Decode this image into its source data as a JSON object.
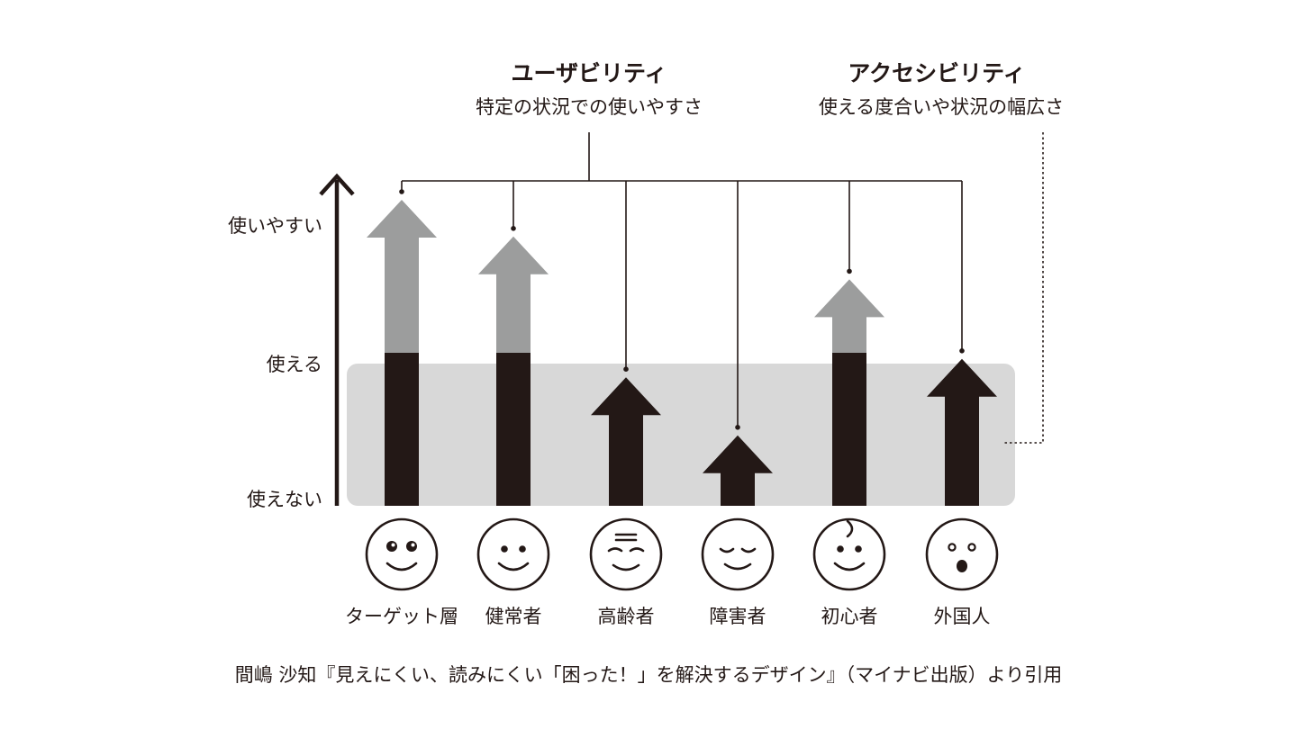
{
  "header": {
    "usability": {
      "title": "ユーザビリティ",
      "subtitle": "特定の状況での使いやすさ"
    },
    "accessibility": {
      "title": "アクセシビリティ",
      "subtitle": "使える度合いや状況の幅広さ"
    }
  },
  "axis": {
    "levels": [
      "使いやすい",
      "使える",
      "使えない"
    ]
  },
  "users": [
    {
      "label": "ターゲット層",
      "face": "target-face-icon",
      "level": 1.0,
      "accessible_level": 0.5
    },
    {
      "label": "健常者",
      "face": "healthy-face-icon",
      "level": 0.88,
      "accessible_level": 0.5
    },
    {
      "label": "高齢者",
      "face": "elderly-face-icon",
      "level": 0.42,
      "accessible_level": 0.42
    },
    {
      "label": "障害者",
      "face": "disabled-face-icon",
      "level": 0.23,
      "accessible_level": 0.23
    },
    {
      "label": "初心者",
      "face": "beginner-face-icon",
      "level": 0.74,
      "accessible_level": 0.5
    },
    {
      "label": "外国人",
      "face": "foreigner-face-icon",
      "level": 0.48,
      "accessible_level": 0.48
    }
  ],
  "colors": {
    "ink": "#231816",
    "gray_arrow": "#9c9d9d",
    "band": "#d8d8d8"
  },
  "caption": "間嶋 沙知『見えにくい、読みにくい「困った！」を解決するデザイン』（マイナビ出版）より引用"
}
